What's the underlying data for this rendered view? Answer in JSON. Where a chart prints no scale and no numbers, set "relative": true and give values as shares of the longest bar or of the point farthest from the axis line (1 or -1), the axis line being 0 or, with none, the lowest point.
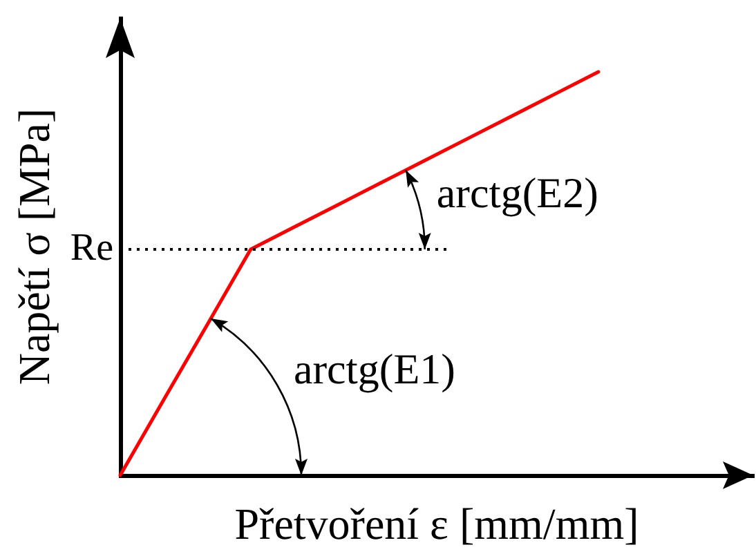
{
  "chart_data": {
    "type": "line",
    "xlabel": "Přetvoření ε [mm/mm]",
    "ylabel": "Napětí σ [MPa]",
    "relative": true,
    "categories": [
      null,
      null,
      null,
      null,
      null,
      null,
      null,
      null,
      null,
      null,
      null,
      null
    ],
    "series": [
      {
        "color": "#ff0000",
        "values": [
          0,
          0.187,
          0.373,
          0.56,
          0.615,
          0.67,
          0.725,
          0.78,
          0.835,
          0.89,
          0.945,
          1
        ]
      }
    ],
    "ref_lines": [
      {
        "axis": "y",
        "value": 0.56,
        "label": "Re",
        "color": "#000000",
        "line_style": "dotted"
      }
    ],
    "annotations": [
      "arctg(E1)",
      "arctg(E2)"
    ],
    "marker": "none"
  }
}
